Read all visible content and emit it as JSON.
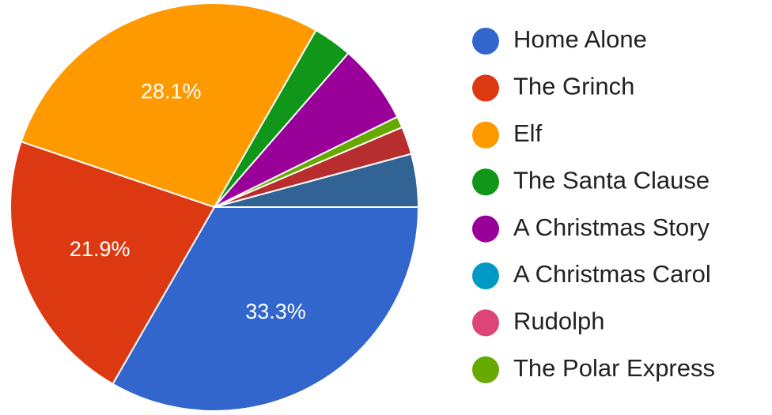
{
  "chart_data": {
    "type": "pie",
    "title": "",
    "slices": [
      {
        "label": "Home Alone",
        "value": 33.3,
        "color": "#3366cc",
        "data_label": "33.3%"
      },
      {
        "label": "The Grinch",
        "value": 21.9,
        "color": "#dc3912",
        "data_label": "21.9%"
      },
      {
        "label": "Elf",
        "value": 28.1,
        "color": "#ff9900",
        "data_label": "28.1%"
      },
      {
        "label": "The Santa Clause",
        "value": 3.1,
        "color": "#109618",
        "data_label": ""
      },
      {
        "label": "A Christmas Story",
        "value": 6.3,
        "color": "#990099",
        "data_label": ""
      },
      {
        "label": "A Christmas Carol",
        "value": 0,
        "color": "#0099c6",
        "data_label": ""
      },
      {
        "label": "Rudolph",
        "value": 0,
        "color": "#dd4477",
        "data_label": ""
      },
      {
        "label": "The Polar Express",
        "value": 0.9,
        "color": "#66aa00",
        "data_label": ""
      },
      {
        "label": "",
        "value": 2.2,
        "color": "#b82e2e",
        "data_label": ""
      },
      {
        "label": "",
        "value": 4.2,
        "color": "#316395",
        "data_label": ""
      }
    ],
    "legend": {
      "position": "right",
      "entries": [
        "Home Alone",
        "The Grinch",
        "Elf",
        "The Santa Clause",
        "A Christmas Story",
        "A Christmas Carol",
        "Rudolph",
        "The Polar Express"
      ]
    },
    "slice_label_color": "#ffffff",
    "legend_text_color": "#222222"
  }
}
